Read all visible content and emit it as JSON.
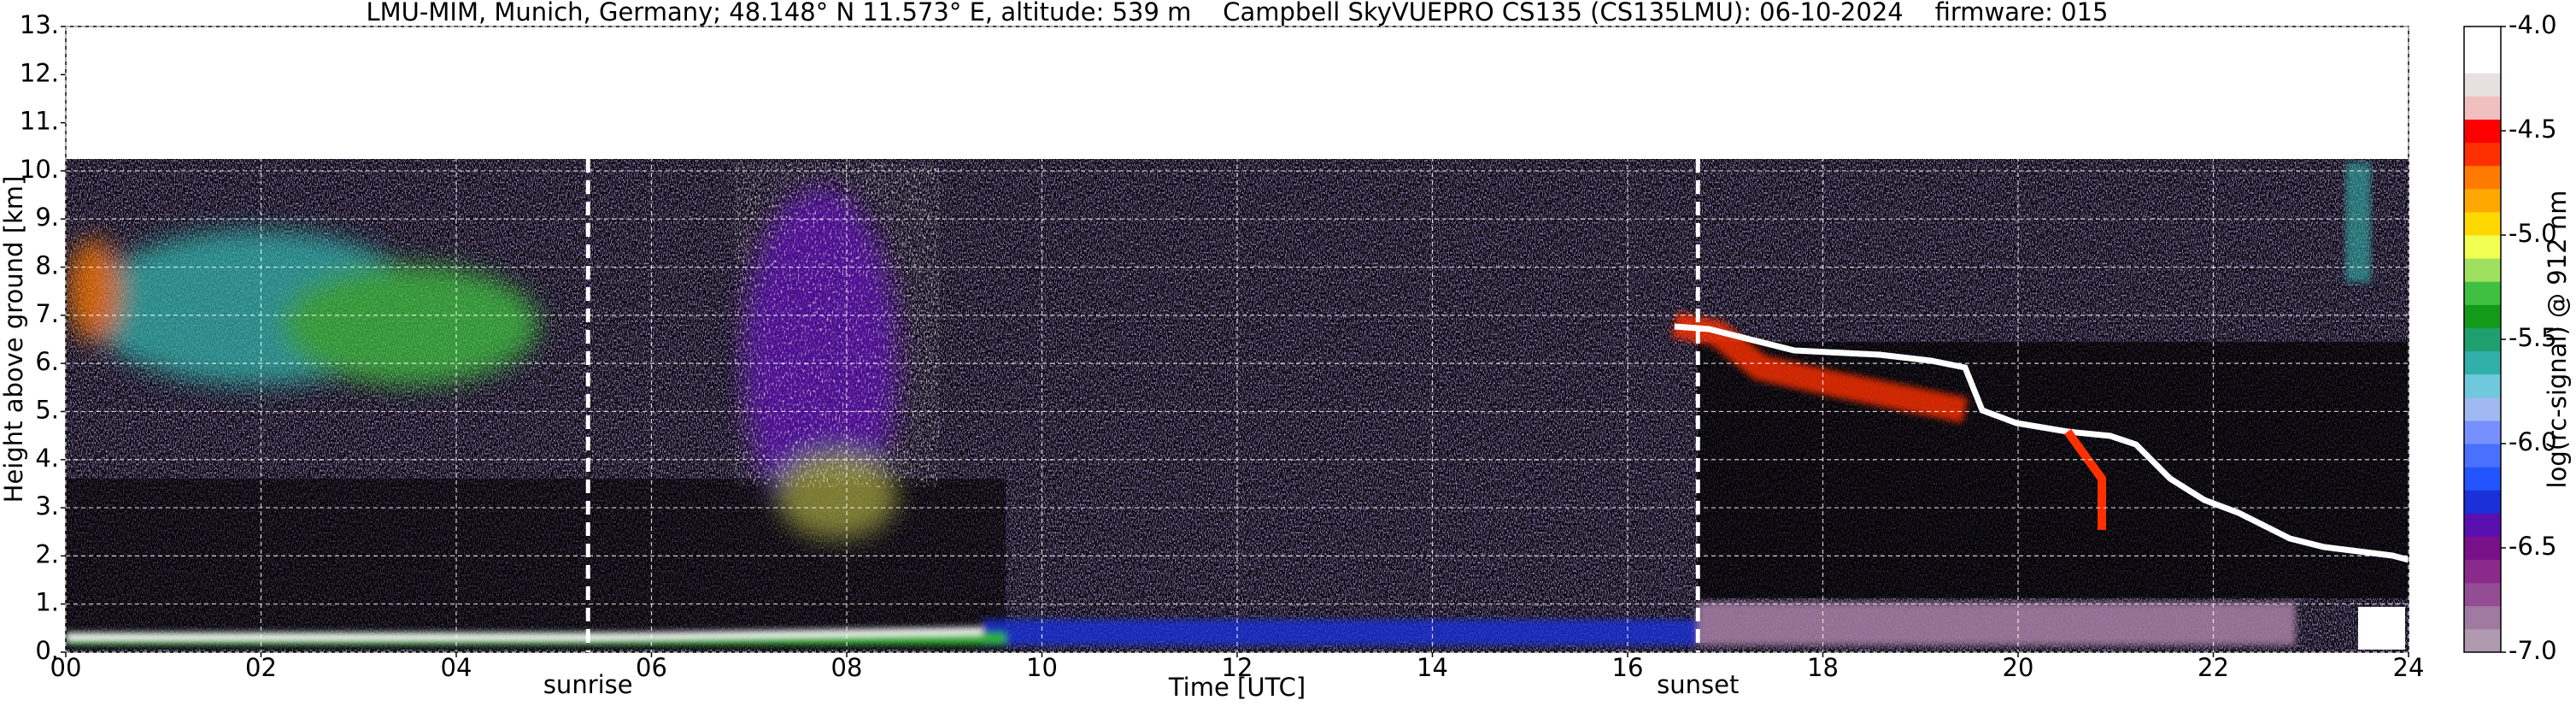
{
  "chart_data": {
    "type": "heatmap",
    "title": "LMU-MIM, Munich, Germany; 48.148° N 11.573° E, altitude: 539 m    Campbell SkyVUEPRO CS135 (CS135LMU): 06-10-2024    firmware: 015",
    "xlabel": "Time [UTC]",
    "ylabel": "Height above ground [km]",
    "xlim": [
      0,
      24
    ],
    "xticks": [
      {
        "value": 0,
        "label": "00"
      },
      {
        "value": 2,
        "label": "02"
      },
      {
        "value": 4,
        "label": "04"
      },
      {
        "value": 6,
        "label": "06"
      },
      {
        "value": 8,
        "label": "08"
      },
      10,
      12,
      14,
      16,
      18,
      20,
      22,
      24
    ],
    "ylim": [
      0,
      13
    ],
    "yticks": [
      {
        "value": 0,
        "label": "0."
      },
      {
        "value": 1,
        "label": "1."
      },
      {
        "value": 2,
        "label": "2."
      },
      {
        "value": 3,
        "label": "3."
      },
      {
        "value": 4,
        "label": "4."
      },
      {
        "value": 5,
        "label": "5."
      },
      {
        "value": 6,
        "label": "6."
      },
      {
        "value": 7,
        "label": "7."
      },
      {
        "value": 8,
        "label": "8."
      },
      {
        "value": 9,
        "label": "9."
      },
      {
        "value": 10,
        "label": "10."
      },
      {
        "value": 11,
        "label": "11."
      },
      {
        "value": 12,
        "label": "12."
      },
      {
        "value": 13,
        "label": "13."
      }
    ],
    "grid": true,
    "annotations": [
      {
        "text": "sunrise",
        "x": 5.35
      },
      {
        "text": "sunset",
        "x": 16.72
      }
    ],
    "colorbar": {
      "label": "log(rc-signal) @ 912 nm",
      "lim": [
        -7,
        -4
      ],
      "ticks": [
        {
          "value": -4,
          "label": "-4.0"
        },
        -4.5,
        {
          "value": -5,
          "label": "-5.0"
        },
        -5.5,
        {
          "value": -6,
          "label": "-6.0"
        },
        -6.5,
        {
          "value": -7,
          "label": "-7.0"
        }
      ],
      "colors": [
        "#b09ab0",
        "#a07aa0",
        "#944c94",
        "#8a2a8a",
        "#7a108a",
        "#5a10b0",
        "#1a30d8",
        "#2255ff",
        "#4a70ff",
        "#7890ff",
        "#a0b8f0",
        "#70c8dc",
        "#30b0a8",
        "#20a070",
        "#129a18",
        "#40c040",
        "#a0e060",
        "#f0ff50",
        "#ffd800",
        "#ffa800",
        "#ff7a00",
        "#ff3000",
        "#ff0000",
        "#f0c0c0",
        "#e8e0e0",
        "#ffffff",
        "#ffffff"
      ]
    }
  }
}
